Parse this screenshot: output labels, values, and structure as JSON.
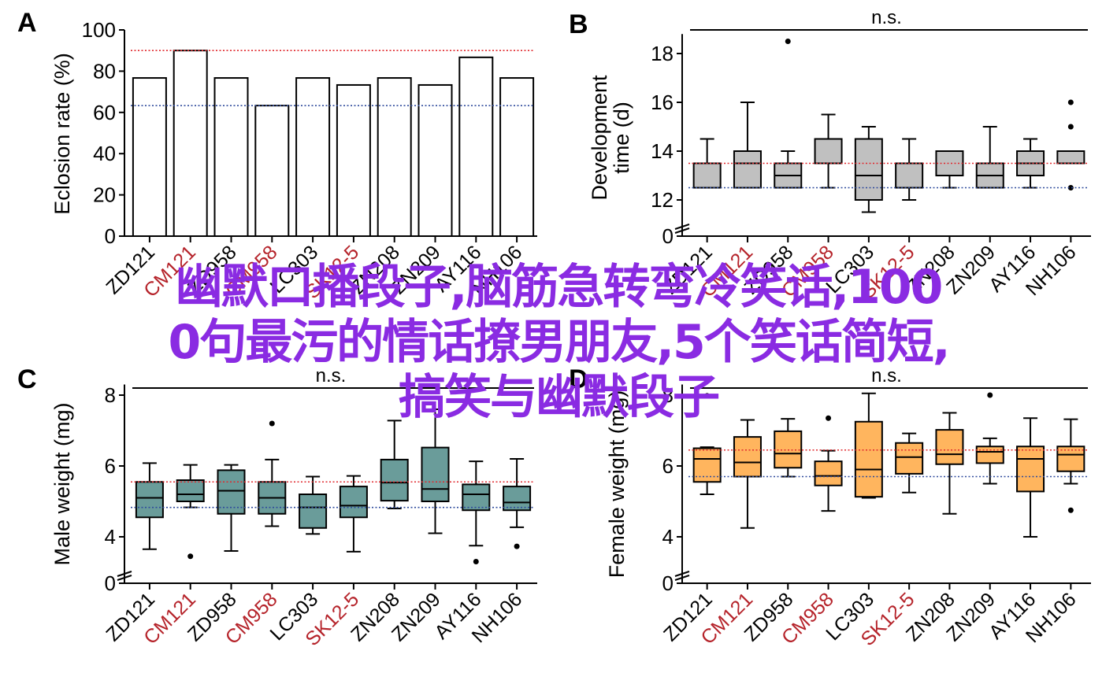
{
  "overlay_text": {
    "line1": "幽默口播段子,脑筋急转弯冷笑话,100",
    "line2": "0句最污的情话撩男朋友,5个笑话简短,",
    "line3": "搞笑与幽默段子"
  },
  "colors": {
    "red_line": "#e0292e",
    "blue_line": "#2f4b9c",
    "red_label": "#b5232a",
    "box_gray": "#c0c0c0",
    "box_teal": "#6a9c9a",
    "box_orange": "#ffb55e",
    "overlay": "#8a2be2"
  },
  "chart_data": [
    {
      "panel": "A",
      "type": "bar",
      "title": "",
      "ylabel": "Eclosion rate (%)",
      "xlabel": "",
      "ylim": [
        0,
        100
      ],
      "yticks": [
        0,
        20,
        40,
        60,
        80,
        100
      ],
      "categories": [
        "ZD121",
        "CM121",
        "ZD958",
        "CM958",
        "LC303",
        "SK12-5",
        "ZN208",
        "ZN209",
        "AY116",
        "NH106"
      ],
      "highlighted_categories": [
        "CM121",
        "CM958",
        "SK12-5"
      ],
      "values": [
        76.7,
        90,
        76.7,
        63.3,
        76.7,
        73.3,
        76.7,
        73.3,
        86.7,
        76.7
      ],
      "reference_lines": [
        {
          "color": "red",
          "value": 90
        },
        {
          "color": "blue",
          "value": 63.3
        }
      ],
      "grid": false
    },
    {
      "panel": "B",
      "type": "box",
      "ylabel": "Development time (d)",
      "ylim": [
        11,
        19
      ],
      "axis_break": true,
      "yticks": [
        0,
        12,
        14,
        16,
        18
      ],
      "significance": "n.s.",
      "categories": [
        "ZD121",
        "CM121",
        "ZD958",
        "CM958",
        "LC303",
        "SK12-5",
        "ZN208",
        "ZN209",
        "AY116",
        "NH106"
      ],
      "highlighted_categories": [
        "CM121",
        "CM958",
        "SK12-5"
      ],
      "boxes": [
        {
          "min": 12.5,
          "q1": 12.5,
          "median": 13.5,
          "q3": 13.5,
          "max": 14.5,
          "outliers": []
        },
        {
          "min": 12.5,
          "q1": 12.5,
          "median": 13.5,
          "q3": 14,
          "max": 16,
          "outliers": []
        },
        {
          "min": 12.5,
          "q1": 12.5,
          "median": 13,
          "q3": 13.5,
          "max": 14,
          "outliers": [
            18.5
          ]
        },
        {
          "min": 12.5,
          "q1": 13.5,
          "median": 13.5,
          "q3": 14.5,
          "max": 15.5,
          "outliers": []
        },
        {
          "min": 11.5,
          "q1": 12,
          "median": 13,
          "q3": 14.5,
          "max": 15,
          "outliers": []
        },
        {
          "min": 12,
          "q1": 12.5,
          "median": 12.5,
          "q3": 13.5,
          "max": 14.5,
          "outliers": []
        },
        {
          "min": 12.5,
          "q1": 13,
          "median": 14,
          "q3": 14,
          "max": 14,
          "outliers": []
        },
        {
          "min": 12.5,
          "q1": 12.5,
          "median": 13,
          "q3": 13.5,
          "max": 15,
          "outliers": []
        },
        {
          "min": 12.5,
          "q1": 13,
          "median": 13.5,
          "q3": 14,
          "max": 14.5,
          "outliers": []
        },
        {
          "min": 13.5,
          "q1": 13.5,
          "median": 14,
          "q3": 14,
          "max": 14,
          "outliers": [
            16,
            15,
            12.5
          ]
        }
      ],
      "reference_lines": [
        {
          "color": "red",
          "value": 13.5
        },
        {
          "color": "blue",
          "value": 12.5
        }
      ]
    },
    {
      "panel": "C",
      "type": "box",
      "ylabel": "Male weight (mg)",
      "ylim": [
        3,
        8.2
      ],
      "axis_break": true,
      "yticks": [
        0,
        4,
        6,
        8
      ],
      "significance": "n.s.",
      "categories": [
        "ZD121",
        "CM121",
        "ZD958",
        "CM958",
        "LC303",
        "SK12-5",
        "ZN208",
        "ZN209",
        "AY116",
        "NH106"
      ],
      "highlighted_categories": [
        "CM121",
        "CM958",
        "SK12-5"
      ],
      "boxes": [
        {
          "min": 3.65,
          "q1": 4.55,
          "median": 5.1,
          "q3": 5.55,
          "max": 6.08,
          "outliers": []
        },
        {
          "min": 4.83,
          "q1": 5.0,
          "median": 5.2,
          "q3": 5.6,
          "max": 6.03,
          "outliers": [
            3.45
          ]
        },
        {
          "min": 3.6,
          "q1": 4.65,
          "median": 5.3,
          "q3": 5.88,
          "max": 6.03,
          "outliers": []
        },
        {
          "min": 4.3,
          "q1": 4.65,
          "median": 5.1,
          "q3": 5.55,
          "max": 6.18,
          "outliers": [
            7.2
          ]
        },
        {
          "min": 4.08,
          "q1": 4.25,
          "median": 4.83,
          "q3": 5.2,
          "max": 5.7,
          "outliers": []
        },
        {
          "min": 3.58,
          "q1": 4.55,
          "median": 4.88,
          "q3": 5.42,
          "max": 5.72,
          "outliers": []
        },
        {
          "min": 4.8,
          "q1": 5.02,
          "median": 5.53,
          "q3": 6.18,
          "max": 7.28,
          "outliers": []
        },
        {
          "min": 4.1,
          "q1": 5.0,
          "median": 5.35,
          "q3": 6.52,
          "max": 7.6,
          "outliers": []
        },
        {
          "min": 3.75,
          "q1": 4.75,
          "median": 5.2,
          "q3": 5.48,
          "max": 6.13,
          "outliers": [
            3.3
          ]
        },
        {
          "min": 4.27,
          "q1": 4.75,
          "median": 4.97,
          "q3": 5.42,
          "max": 6.2,
          "outliers": [
            3.73
          ]
        }
      ],
      "reference_lines": [
        {
          "color": "red",
          "value": 5.55
        },
        {
          "color": "blue",
          "value": 4.83
        }
      ]
    },
    {
      "panel": "D",
      "type": "box",
      "ylabel": "Female weight (mg)",
      "ylim": [
        3,
        8.2
      ],
      "axis_break": true,
      "yticks": [
        0,
        4,
        6,
        8
      ],
      "significance": "n.s.",
      "categories": [
        "ZD121",
        "CM121",
        "ZD958",
        "CM958",
        "LC303",
        "SK12-5",
        "ZN208",
        "ZN209",
        "AY116",
        "NH106"
      ],
      "highlighted_categories": [
        "CM121",
        "CM958",
        "SK12-5"
      ],
      "boxes": [
        {
          "min": 5.2,
          "q1": 5.55,
          "median": 6.2,
          "q3": 6.5,
          "max": 6.53,
          "outliers": [
            7.98
          ]
        },
        {
          "min": 4.25,
          "q1": 5.7,
          "median": 6.1,
          "q3": 6.82,
          "max": 7.3,
          "outliers": []
        },
        {
          "min": 5.7,
          "q1": 5.95,
          "median": 6.35,
          "q3": 6.98,
          "max": 7.33,
          "outliers": []
        },
        {
          "min": 4.73,
          "q1": 5.45,
          "median": 5.72,
          "q3": 6.13,
          "max": 6.43,
          "outliers": [
            7.35
          ]
        },
        {
          "min": 5.1,
          "q1": 5.13,
          "median": 5.9,
          "q3": 7.25,
          "max": 8.05,
          "outliers": []
        },
        {
          "min": 5.25,
          "q1": 5.78,
          "median": 6.25,
          "q3": 6.65,
          "max": 6.92,
          "outliers": []
        },
        {
          "min": 4.65,
          "q1": 6.05,
          "median": 6.33,
          "q3": 7.02,
          "max": 7.5,
          "outliers": []
        },
        {
          "min": 5.5,
          "q1": 6.08,
          "median": 6.4,
          "q3": 6.55,
          "max": 6.78,
          "outliers": [
            8.0
          ]
        },
        {
          "min": 4.0,
          "q1": 5.28,
          "median": 6.2,
          "q3": 6.55,
          "max": 7.35,
          "outliers": []
        },
        {
          "min": 5.5,
          "q1": 5.85,
          "median": 6.32,
          "q3": 6.55,
          "max": 7.32,
          "outliers": [
            4.75
          ]
        }
      ],
      "reference_lines": [
        {
          "color": "red",
          "value": 6.45
        },
        {
          "color": "blue",
          "value": 5.7
        }
      ]
    }
  ]
}
